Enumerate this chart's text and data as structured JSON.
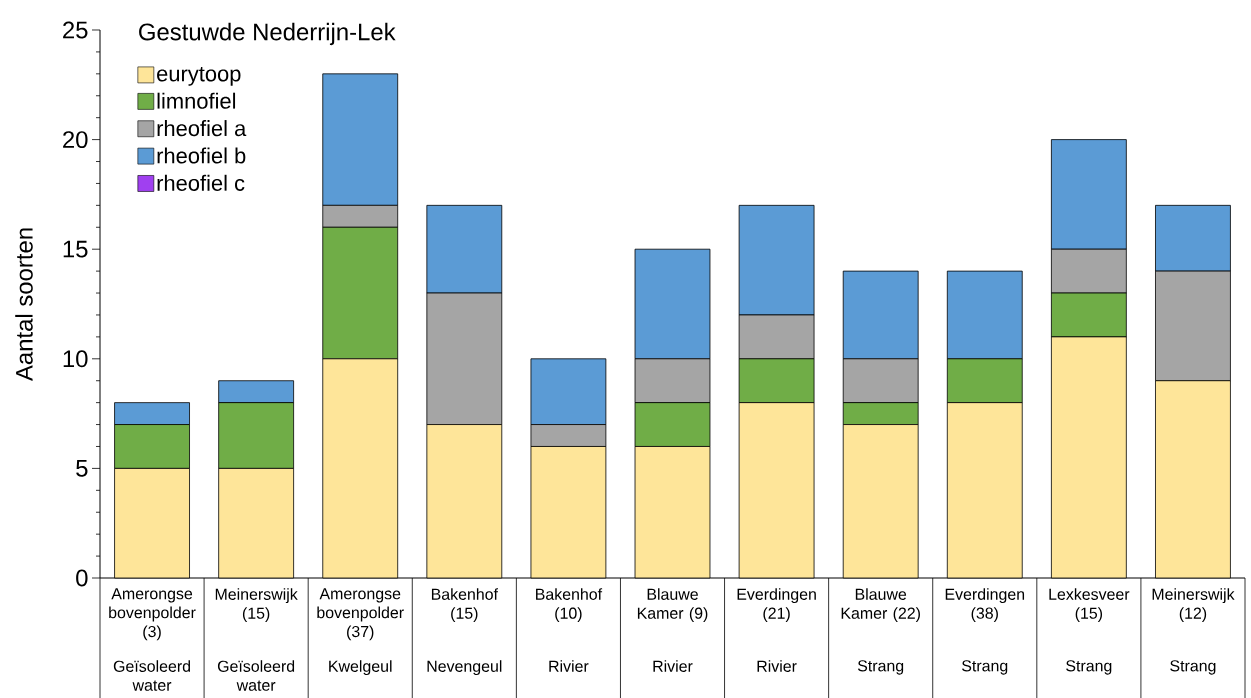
{
  "chart_data": {
    "type": "bar",
    "title": "Gestuwde Nederrijn-Lek",
    "ylabel": "Aantal soorten",
    "categories": [
      "Amerongse bovenpolder (3)",
      "Meinerswijk (15)",
      "Amerongse bovenpolder (37)",
      "Bakenhof (15)",
      "Bakenhof (10)",
      "Blauwe Kamer (9)",
      "Everdingen (21)",
      "Blauwe Kamer (22)",
      "Everdingen (38)",
      "Lexkesveer (15)",
      "Meinerswijk (12)"
    ],
    "annotations": [
      "Geïsoleerd water",
      "Geïsoleerd water",
      "Kwelgeul",
      "Nevengeul",
      "Rivier",
      "Rivier",
      "Rivier",
      "Strang",
      "Strang",
      "Strang",
      "Strang"
    ],
    "stacked": true,
    "series": [
      {
        "name": "eurytoop",
        "color": "#fee599",
        "values": [
          5,
          5,
          10,
          7,
          6,
          6,
          8,
          7,
          8,
          11,
          9
        ]
      },
      {
        "name": "limnofiel",
        "color": "#70ad47",
        "values": [
          2,
          3,
          6,
          0,
          0,
          2,
          2,
          1,
          2,
          2,
          0
        ]
      },
      {
        "name": "rheofiel a",
        "color": "#a5a5a5",
        "values": [
          0,
          0,
          1,
          6,
          1,
          2,
          2,
          2,
          0,
          2,
          5
        ]
      },
      {
        "name": "rheofiel b",
        "color": "#5b9bd5",
        "values": [
          1,
          1,
          6,
          4,
          3,
          5,
          5,
          4,
          4,
          5,
          3
        ]
      },
      {
        "name": "rheofiel c",
        "color": "#a040f0",
        "values": [
          0,
          0,
          0,
          0,
          0,
          0,
          0,
          0,
          0,
          0,
          0
        ]
      }
    ],
    "ylim": [
      0,
      25
    ],
    "yticks": [
      0,
      5,
      10,
      15,
      20,
      25
    ],
    "grid": false,
    "legend": "top left"
  }
}
